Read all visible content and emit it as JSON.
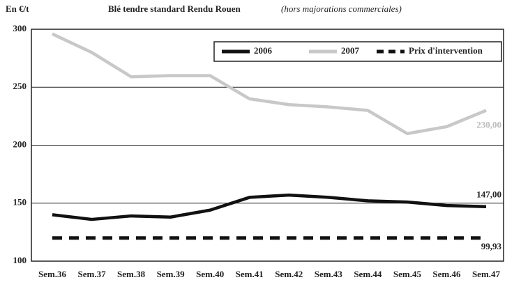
{
  "chart_data": {
    "type": "line",
    "title": "Blé tendre standard Rendu Rouen",
    "subtitle": "(hors majorations commerciales)",
    "y_label": "En €/t",
    "categories": [
      "Sem.36",
      "Sem.37",
      "Sem.38",
      "Sem.39",
      "Sem.40",
      "Sem.41",
      "Sem.42",
      "Sem.43",
      "Sem.44",
      "Sem.45",
      "Sem.46",
      "Sem.47"
    ],
    "series": [
      {
        "name": "2006",
        "color": "#111111",
        "dash": false,
        "values": [
          140,
          136,
          139,
          138,
          144,
          155,
          157,
          155,
          152,
          151,
          148,
          147
        ],
        "value_labels": [
          null,
          null,
          null,
          null,
          null,
          null,
          null,
          null,
          null,
          null,
          null,
          "147,00"
        ]
      },
      {
        "name": "2007",
        "color": "#c8c8c8",
        "dash": false,
        "values": [
          296,
          280,
          259,
          260,
          260,
          240,
          235,
          233,
          230,
          210,
          216,
          230
        ],
        "value_labels": [
          null,
          null,
          null,
          null,
          null,
          null,
          null,
          null,
          null,
          null,
          null,
          "230,00"
        ]
      },
      {
        "name": "Prix d'intervention",
        "color": "#111111",
        "dash": true,
        "values": [
          120,
          120,
          120,
          120,
          120,
          120,
          120,
          120,
          120,
          120,
          120,
          120
        ]
      }
    ],
    "annotation": "99,93",
    "ylim": [
      100,
      300
    ],
    "yticks": [
      100,
      150,
      200,
      250,
      300
    ],
    "grid": true,
    "legend": "top-right"
  }
}
